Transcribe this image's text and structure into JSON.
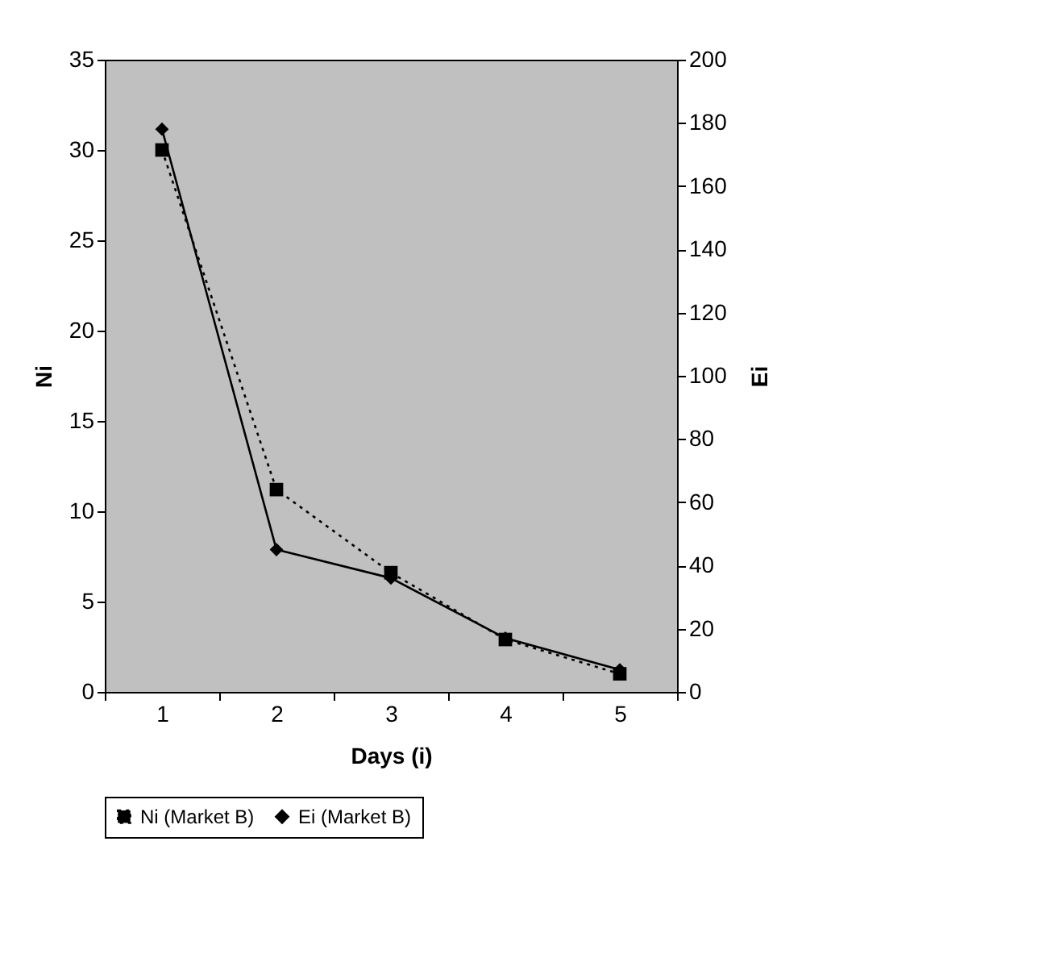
{
  "chart_data": {
    "type": "line",
    "xlabel": "Days (i)",
    "ylabel": "Ni",
    "y2label": "Ei",
    "categories": [
      "1",
      "2",
      "3",
      "4",
      "5"
    ],
    "series": [
      {
        "name": "Ni (Market B)",
        "color": "#000000",
        "values": [
          30,
          11.2,
          6.6,
          2.9,
          1.0
        ],
        "marker": "square",
        "line_style": "dotted"
      },
      {
        "name": "Ei (Market B)",
        "color": "#000000",
        "values": [
          178,
          45,
          36,
          17,
          7
        ],
        "axis": "y2",
        "marker": "diamond",
        "line_style": "solid"
      }
    ],
    "ylim": [
      0,
      35
    ],
    "yticks": [
      0,
      5,
      10,
      15,
      20,
      25,
      30,
      35
    ],
    "y2lim": [
      0,
      200
    ],
    "y2ticks": [
      0,
      20,
      40,
      60,
      80,
      100,
      120,
      140,
      160,
      180,
      200
    ],
    "grid": false,
    "legend": "bottom"
  }
}
